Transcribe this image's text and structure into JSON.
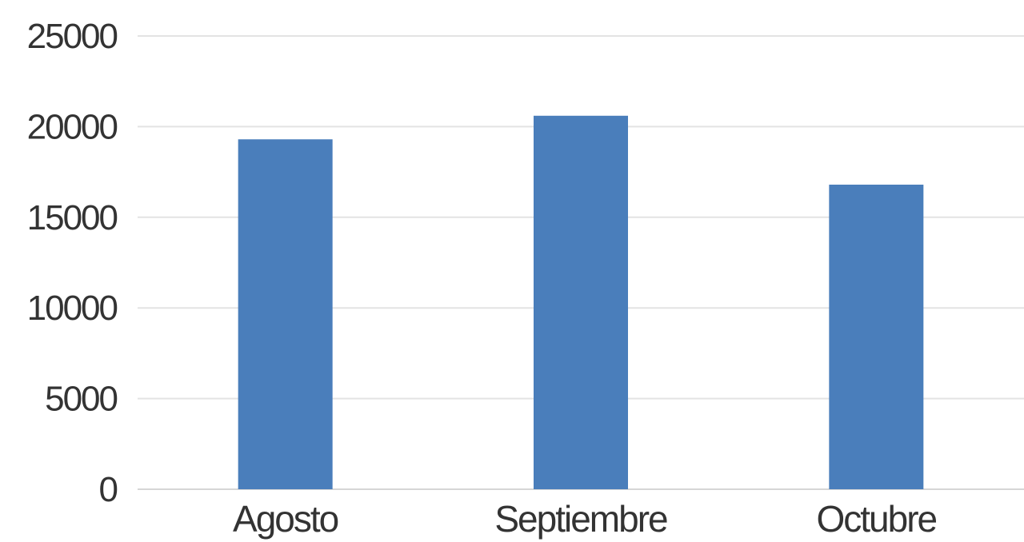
{
  "chart_data": {
    "type": "bar",
    "title": "",
    "xlabel": "",
    "ylabel": "",
    "categories": [
      "Agosto",
      "Septiembre",
      "Octubre"
    ],
    "values": [
      19300,
      20600,
      16800
    ],
    "ylim": [
      0,
      25000
    ],
    "yticks": [
      0,
      5000,
      10000,
      15000,
      20000,
      25000
    ],
    "grid": true,
    "legend": "none",
    "bar_color": "#4a7ebb"
  }
}
